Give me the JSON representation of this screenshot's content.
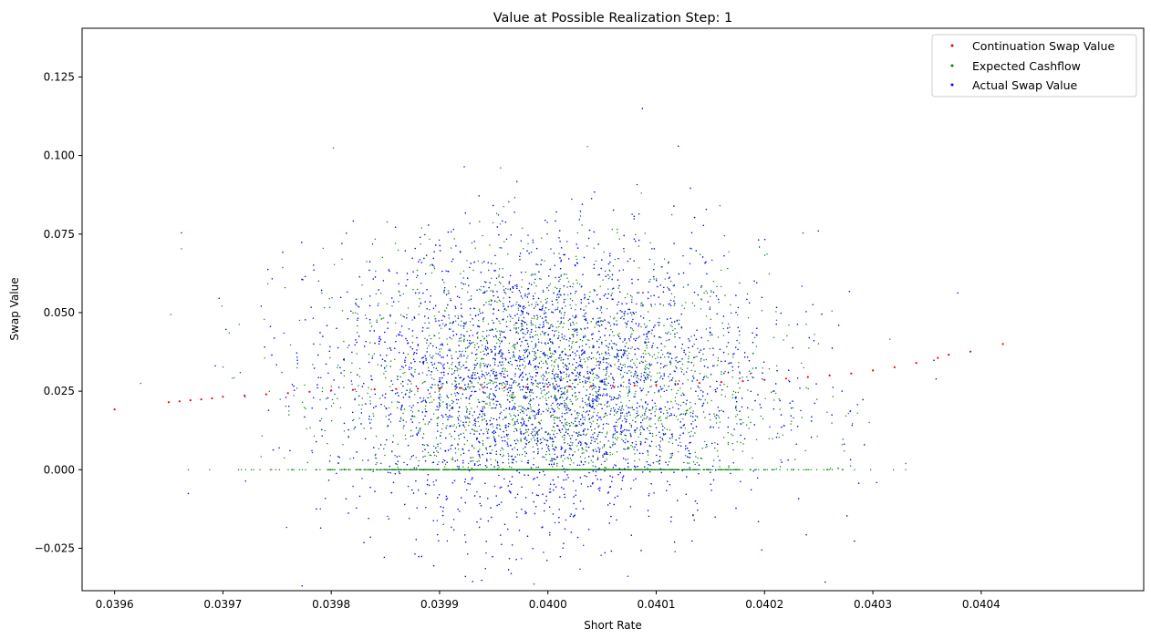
{
  "chart_data": {
    "type": "scatter",
    "title": "Value at Possible Realization Step: 1",
    "xlabel": "Short Rate",
    "ylabel": "Swap Value",
    "xlim": [
      0.03957,
      0.04055
    ],
    "ylim": [
      -0.0385,
      0.1405
    ],
    "x_ticks": [
      0.0396,
      0.0397,
      0.0398,
      0.0399,
      0.04,
      0.0401,
      0.0402,
      0.0403,
      0.0404
    ],
    "x_tick_labels": [
      "0.0396",
      "0.0397",
      "0.0398",
      "0.0399",
      "0.0400",
      "0.0401",
      "0.0402",
      "0.0403",
      "0.0404"
    ],
    "y_ticks": [
      -0.025,
      0.0,
      0.025,
      0.05,
      0.075,
      0.1,
      0.125
    ],
    "y_tick_labels": [
      "−0.025",
      "0.000",
      "0.025",
      "0.050",
      "0.075",
      "0.100",
      "0.125"
    ],
    "grid": false,
    "legend_position": "top-right",
    "series": [
      {
        "name": "Continuation Swap Value",
        "color": "#ff0000",
        "x": [
          0.0396,
          0.03965,
          0.03966,
          0.03967,
          0.03968,
          0.03969,
          0.0397,
          0.03972,
          0.03974,
          0.03976,
          0.03978,
          0.0398,
          0.03982,
          0.03984,
          0.03986,
          0.03988,
          0.0399,
          0.03992,
          0.03994,
          0.03996,
          0.03998,
          0.04,
          0.04002,
          0.04004,
          0.04006,
          0.04008,
          0.0401,
          0.04012,
          0.04014,
          0.04016,
          0.04018,
          0.0402,
          0.04022,
          0.04024,
          0.04026,
          0.04028,
          0.0403,
          0.04032,
          0.04034,
          0.04036,
          0.04037,
          0.04039,
          0.04042
        ],
        "y": [
          0.0192,
          0.0215,
          0.0218,
          0.0221,
          0.0224,
          0.0227,
          0.0232,
          0.0236,
          0.024,
          0.0244,
          0.0248,
          0.0252,
          0.0254,
          0.0256,
          0.0257,
          0.0258,
          0.0259,
          0.026,
          0.0261,
          0.0262,
          0.0263,
          0.0264,
          0.0265,
          0.0266,
          0.0267,
          0.0268,
          0.027,
          0.0273,
          0.0276,
          0.0279,
          0.0282,
          0.0286,
          0.029,
          0.0295,
          0.03,
          0.0306,
          0.0316,
          0.0326,
          0.034,
          0.0356,
          0.0366,
          0.0376,
          0.04
        ]
      },
      {
        "name": "Expected Cashflow",
        "color": "#008000",
        "distribution": "random scatter centered near 0.0400 with a dense band of points at 0.000"
      },
      {
        "name": "Actual Swap Value",
        "color": "#0000ff",
        "distribution": "random scatter centered near 0.0400, values roughly −0.035 to 0.135"
      }
    ]
  }
}
